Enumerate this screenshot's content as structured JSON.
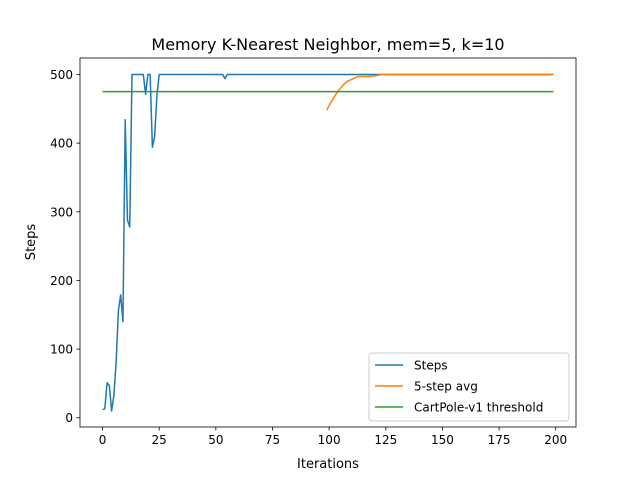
{
  "chart_data": {
    "type": "line",
    "title": "Memory K-Nearest Neighbor, mem=5, k=10",
    "xlabel": "Iterations",
    "ylabel": "Steps",
    "xlim": [
      -9.95,
      208.95
    ],
    "ylim": [
      -13.5,
      524
    ],
    "xticks": [
      0,
      25,
      50,
      75,
      100,
      125,
      150,
      175,
      200
    ],
    "yticks": [
      0,
      100,
      200,
      300,
      400,
      500
    ],
    "grid": false,
    "legend_position": "lower-right",
    "series": [
      {
        "name": "Steps",
        "color": "#1f77b4",
        "x": [
          0,
          1,
          2,
          3,
          4,
          5,
          6,
          7,
          8,
          9,
          10,
          11,
          12,
          13,
          14,
          15,
          16,
          17,
          18,
          19,
          20,
          21,
          22,
          23,
          24,
          25,
          26,
          30,
          40,
          50,
          53,
          54,
          55,
          60,
          80,
          100,
          120,
          140,
          160,
          180,
          199
        ],
        "y": [
          12,
          13,
          51,
          47,
          10,
          32,
          82,
          156,
          179,
          140,
          434,
          288,
          278,
          500,
          500,
          500,
          500,
          500,
          500,
          471,
          500,
          500,
          394,
          410,
          470,
          500,
          500,
          500,
          500,
          500,
          500,
          494,
          500,
          500,
          500,
          500,
          500,
          500,
          500,
          500,
          500
        ]
      },
      {
        "name": "5-step avg",
        "color": "#ff7f0e",
        "x": [
          99,
          100,
          102,
          104,
          106,
          108,
          110,
          112,
          113,
          114,
          116,
          118,
          120,
          121,
          122,
          123,
          125,
          130,
          140,
          160,
          180,
          199
        ],
        "y": [
          448,
          455,
          466,
          476,
          484,
          490,
          493,
          496,
          497,
          497,
          497,
          497.5,
          498,
          498.5,
          499,
          500,
          500,
          500,
          500,
          500,
          500,
          500
        ]
      },
      {
        "name": "CartPole-v1 threshold",
        "color": "#2ca02c",
        "x": [
          0,
          199
        ],
        "y": [
          475,
          475
        ]
      }
    ]
  }
}
